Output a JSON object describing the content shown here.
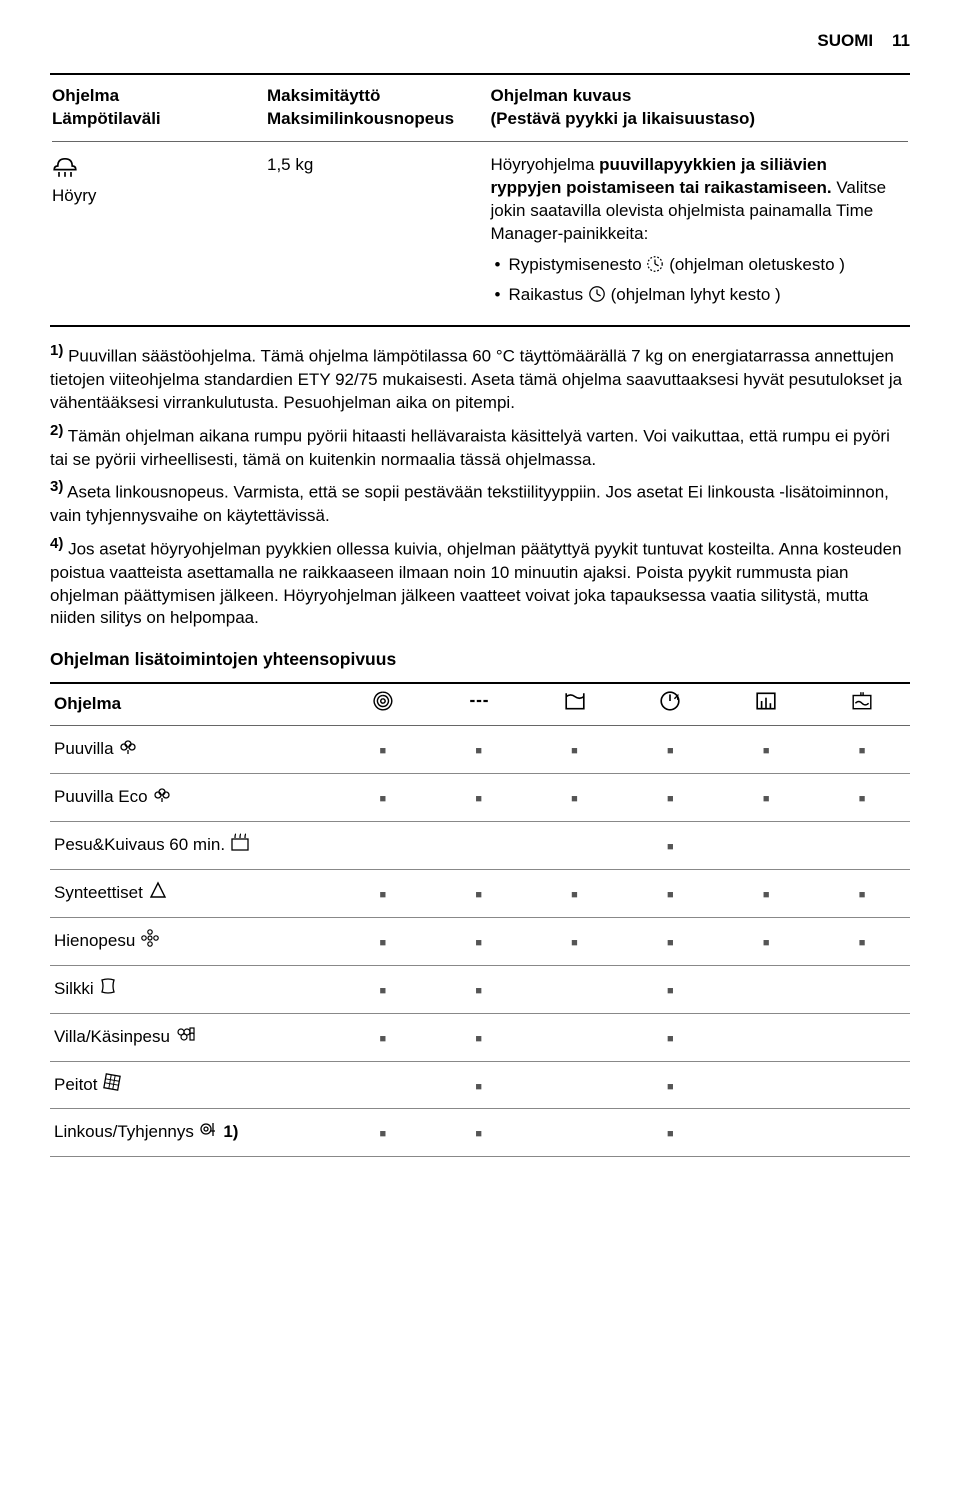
{
  "header": {
    "language": "SUOMI",
    "page_number": "11"
  },
  "program_table": {
    "columns": {
      "c1a": "Ohjelma",
      "c1b": "Lämpötilaväli",
      "c2a": "Maksimitäyttö",
      "c2b": "Maksimilinkousnopeus",
      "c3a": "Ohjelman kuvaus",
      "c3b": "(Pestävä pyykki ja likaisuustaso)"
    },
    "row": {
      "program_name": "Höyry",
      "load": "1,5 kg",
      "desc_lead": "Höyryohjelma ",
      "desc_bold": "puuvillapyykkien ja siliävien ryppyjen poistamiseen tai raikastamiseen.",
      "desc_tail": " Valitse jokin saatavilla olevista ohjelmista painamalla Time Manager-painikkeita:",
      "bullets": {
        "b1a": "Rypistymisenesto ",
        "b1b": " (ohjelman oletuskesto )",
        "b2a": "Raikastus ",
        "b2b": " (ohjelman lyhyt kesto )"
      }
    }
  },
  "footnotes": {
    "n1": "Puuvillan säästöohjelma. Tämä ohjelma lämpötilassa 60 °C täyttömäärällä 7 kg on energiatarrassa annettujen tietojen viiteohjelma standardien ETY 92/75 mukaisesti. Aseta tämä ohjelma saavuttaaksesi hyvät pesutulokset ja vähentääksesi virrankulutusta. Pesuohjelman aika on pitempi.",
    "n2": "Tämän ohjelman aikana rumpu pyörii hitaasti hellävaraista käsittelyä varten. Voi vaikuttaa, että rumpu ei pyöri tai se pyörii virheellisesti, tämä on kuitenkin normaalia tässä ohjelmassa.",
    "n3": "Aseta linkousnopeus. Varmista, että se sopii pestävään tekstiilityyppiin. Jos asetat Ei linkousta -lisätoiminnon, vain tyhjennysvaihe on käytettävissä.",
    "n4": "Jos asetat höyryohjelman pyykkien ollessa kuivia, ohjelman päätyttyä pyykit tuntuvat kosteilta. Anna kosteuden poistua vaatteista asettamalla ne raikkaaseen ilmaan noin 10 minuutin ajaksi. Poista pyykit rummusta pian ohjelman päättymisen jälkeen. Höyryohjelman jälkeen vaatteet voivat joka tapauksessa vaatia silitystä, mutta niiden silitys on helpompaa."
  },
  "compat": {
    "title": "Ohjelman lisätoimintojen yhteensopivuus",
    "heading": "Ohjelma",
    "rows": [
      {
        "label": "Puuvilla ",
        "icon": "cotton",
        "marks": [
          1,
          1,
          1,
          1,
          1,
          1
        ]
      },
      {
        "label": "Puuvilla Eco ",
        "icon": "cotton",
        "marks": [
          1,
          1,
          1,
          1,
          1,
          1
        ]
      },
      {
        "label": "Pesu&Kuivaus 60 min. ",
        "icon": "dry",
        "marks": [
          0,
          0,
          0,
          1,
          0,
          0
        ]
      },
      {
        "label": "Synteettiset ",
        "icon": "synth",
        "marks": [
          1,
          1,
          1,
          1,
          1,
          1
        ]
      },
      {
        "label": "Hienopesu ",
        "icon": "flower",
        "marks": [
          1,
          1,
          1,
          1,
          1,
          1
        ]
      },
      {
        "label": "Silkki ",
        "icon": "silk",
        "marks": [
          1,
          1,
          0,
          1,
          0,
          0
        ]
      },
      {
        "label": "Villa/Käsinpesu ",
        "icon": "wool",
        "marks": [
          1,
          1,
          0,
          1,
          0,
          0
        ]
      },
      {
        "label": "Peitot ",
        "icon": "quilt",
        "marks": [
          0,
          1,
          0,
          1,
          0,
          0
        ]
      },
      {
        "label": "Linkous/Tyhjennys ",
        "icon": "spin",
        "note": " 1)",
        "marks": [
          1,
          1,
          0,
          1,
          0,
          0
        ]
      }
    ],
    "square": "■"
  },
  "colors": {
    "text": "#000000",
    "rule_mid": "#666666",
    "square": "#555555"
  }
}
